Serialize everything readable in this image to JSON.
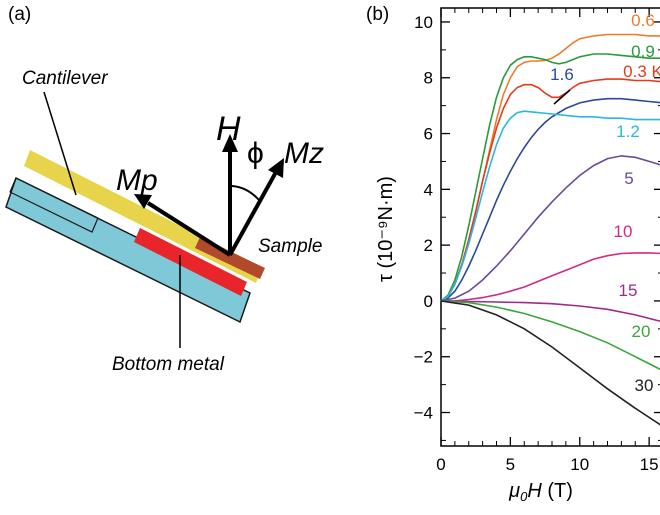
{
  "panel_a": {
    "label": "(a)",
    "cantilever_label": "Cantilever",
    "bottom_metal_label": "Bottom metal",
    "sample_label": "Sample",
    "field_label": "H",
    "angle_label": "ϕ",
    "mz_label": "Mz",
    "mp_label": "Mp",
    "colors": {
      "cantilever": "#e8d44a",
      "substrate": "#7ec8d8",
      "bottom_metal": "#e8252a",
      "sample": "#b04a2a"
    }
  },
  "panel_b": {
    "label": "(b)"
  },
  "chart_data": {
    "type": "line",
    "xlabel_main": "μ",
    "xlabel_sub": "0",
    "xlabel_var": "H",
    "xlabel_unit": " (T)",
    "ylabel": "τ (10⁻⁹N·m)",
    "xlim": [
      0,
      16
    ],
    "ylim": [
      -5.2,
      10.5
    ],
    "xticks": [
      0,
      5,
      10,
      15
    ],
    "yticks": [
      -4,
      -2,
      0,
      2,
      4,
      6,
      8,
      10
    ],
    "ytick_labels": [
      "−4",
      "−2",
      "0",
      "2",
      "4",
      "6",
      "8",
      "10"
    ],
    "series": [
      {
        "name": "0.6",
        "color": "#f07a2a",
        "x": [
          0,
          0.5,
          1,
          1.5,
          2,
          2.5,
          3,
          3.5,
          4,
          4.5,
          5,
          5.5,
          6,
          6.5,
          7,
          7.5,
          8,
          8.5,
          9,
          9.5,
          10,
          11,
          12,
          13,
          14,
          15,
          16
        ],
        "y": [
          0,
          0.15,
          0.6,
          1.3,
          2.2,
          3.2,
          4.3,
          5.4,
          6.5,
          7.4,
          8.0,
          8.4,
          8.55,
          8.6,
          8.6,
          8.62,
          8.7,
          8.85,
          9.05,
          9.25,
          9.4,
          9.5,
          9.55,
          9.55,
          9.55,
          9.5,
          9.5
        ]
      },
      {
        "name": "0.9",
        "color": "#2a9a3a",
        "x": [
          0,
          0.5,
          1,
          1.5,
          2,
          2.5,
          3,
          3.5,
          4,
          4.5,
          5,
          5.5,
          6,
          6.5,
          7,
          7.5,
          8,
          8.5,
          9,
          9.5,
          10,
          11,
          12,
          13,
          14,
          15,
          16
        ],
        "y": [
          0,
          0.2,
          0.75,
          1.6,
          2.7,
          3.9,
          5.1,
          6.3,
          7.3,
          8.0,
          8.45,
          8.65,
          8.75,
          8.75,
          8.7,
          8.65,
          8.55,
          8.5,
          8.55,
          8.65,
          8.75,
          8.85,
          8.85,
          8.8,
          8.75,
          8.7,
          8.7
        ]
      },
      {
        "name": "0.3 K",
        "color": "#e83a1a",
        "x": [
          0,
          0.5,
          1,
          1.5,
          2,
          2.5,
          3,
          3.5,
          4,
          4.5,
          5,
          5.5,
          6,
          6.5,
          7,
          7.5,
          8,
          8.5,
          9,
          9.5,
          10,
          11,
          12,
          13,
          14,
          15,
          16
        ],
        "y": [
          0,
          0.15,
          0.6,
          1.3,
          2.2,
          3.2,
          4.3,
          5.3,
          6.2,
          6.9,
          7.4,
          7.65,
          7.75,
          7.75,
          7.65,
          7.45,
          7.3,
          7.3,
          7.45,
          7.65,
          7.8,
          7.9,
          7.95,
          7.95,
          7.9,
          7.9,
          7.85
        ]
      },
      {
        "name": "1.6",
        "color": "#2a4a9a",
        "x": [
          0,
          0.5,
          1,
          1.5,
          2,
          2.5,
          3,
          3.5,
          4,
          4.5,
          5,
          5.5,
          6,
          6.5,
          7,
          7.5,
          8,
          9,
          10,
          11,
          12,
          13,
          14,
          15,
          16
        ],
        "y": [
          0,
          0.1,
          0.35,
          0.75,
          1.25,
          1.8,
          2.4,
          3.0,
          3.6,
          4.15,
          4.65,
          5.1,
          5.5,
          5.85,
          6.15,
          6.4,
          6.6,
          6.9,
          7.1,
          7.2,
          7.25,
          7.25,
          7.2,
          7.15,
          7.1
        ]
      },
      {
        "name": "1.2",
        "color": "#2ab8e0",
        "x": [
          0,
          0.5,
          1,
          1.5,
          2,
          2.5,
          3,
          3.5,
          4,
          4.5,
          5,
          5.5,
          6,
          7,
          8,
          9,
          10,
          11,
          12,
          13,
          14,
          15,
          16
        ],
        "y": [
          0,
          0.15,
          0.6,
          1.25,
          2.05,
          2.95,
          3.9,
          4.8,
          5.6,
          6.2,
          6.55,
          6.75,
          6.8,
          6.75,
          6.7,
          6.65,
          6.6,
          6.6,
          6.55,
          6.55,
          6.5,
          6.5,
          6.5
        ]
      },
      {
        "name": "5",
        "color": "#6a4a9a",
        "x": [
          0,
          1,
          2,
          3,
          4,
          5,
          6,
          7,
          8,
          9,
          10,
          11,
          12,
          13,
          14,
          15,
          16
        ],
        "y": [
          0,
          0.1,
          0.35,
          0.75,
          1.25,
          1.8,
          2.4,
          3.0,
          3.55,
          4.05,
          4.5,
          4.85,
          5.1,
          5.2,
          5.15,
          5.0,
          4.85
        ]
      },
      {
        "name": "10",
        "color": "#d02a8a",
        "x": [
          0,
          1,
          2,
          3,
          4,
          5,
          6,
          7,
          8,
          9,
          10,
          11,
          12,
          13,
          14,
          15,
          16
        ],
        "y": [
          0,
          0.0,
          0.05,
          0.12,
          0.22,
          0.35,
          0.5,
          0.7,
          0.9,
          1.1,
          1.3,
          1.5,
          1.62,
          1.7,
          1.72,
          1.72,
          1.7
        ]
      },
      {
        "name": "15",
        "color": "#a02a8a",
        "x": [
          0,
          2,
          4,
          6,
          8,
          10,
          12,
          14,
          16
        ],
        "y": [
          0,
          -0.02,
          -0.04,
          -0.06,
          -0.1,
          -0.18,
          -0.3,
          -0.5,
          -0.75
        ]
      },
      {
        "name": "20",
        "color": "#3aa83a",
        "x": [
          0,
          2,
          4,
          6,
          8,
          10,
          12,
          14,
          16
        ],
        "y": [
          0,
          -0.06,
          -0.22,
          -0.45,
          -0.75,
          -1.1,
          -1.5,
          -2.0,
          -2.5
        ]
      },
      {
        "name": "30",
        "color": "#222222",
        "x": [
          0,
          2,
          4,
          6,
          8,
          10,
          12,
          14,
          16
        ],
        "y": [
          0,
          -0.15,
          -0.5,
          -1.0,
          -1.65,
          -2.4,
          -3.15,
          -3.85,
          -4.5
        ]
      }
    ],
    "series_label_colors": [
      "#f07a2a",
      "#2a9a3a",
      "#e83a1a",
      "#2a4a9a",
      "#2ab8e0",
      "#6a4a9a",
      "#d02a8a",
      "#a02a8a",
      "#3aa83a",
      "#222222"
    ]
  }
}
